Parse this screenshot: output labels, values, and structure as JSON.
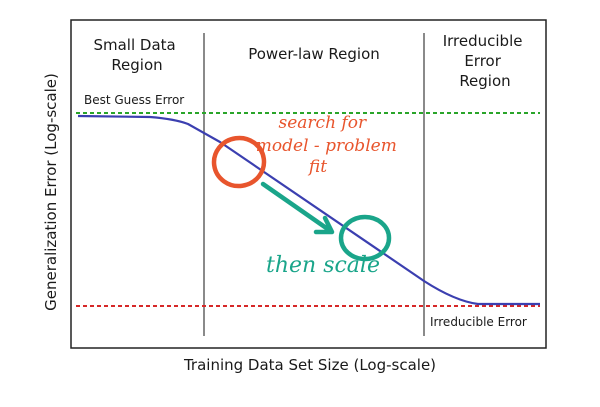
{
  "figure": {
    "regions": [
      {
        "lines": [
          "Small Data",
          "Region"
        ]
      },
      {
        "lines": [
          "Power-law Region"
        ]
      },
      {
        "lines": [
          "Irreducible",
          "Error",
          "Region"
        ]
      }
    ],
    "best_guess_label": "Best Guess Error",
    "irreducible_label": "Irreducible Error",
    "xlabel": "Training Data Set Size (Log-scale)",
    "ylabel": "Generalization Error (Log-scale)",
    "annotations": {
      "search": {
        "lines": [
          "search for",
          "model - problem",
          "fit"
        ],
        "color": "#e8552d"
      },
      "scale": {
        "text": "then scale",
        "color": "#1aa58a"
      }
    },
    "colors": {
      "curve": "#3b3fb0",
      "best_guess_line": "#2aa52a",
      "irreducible_line": "#d62828",
      "dividers": "#8a8a8a",
      "frame": "#222222"
    }
  }
}
